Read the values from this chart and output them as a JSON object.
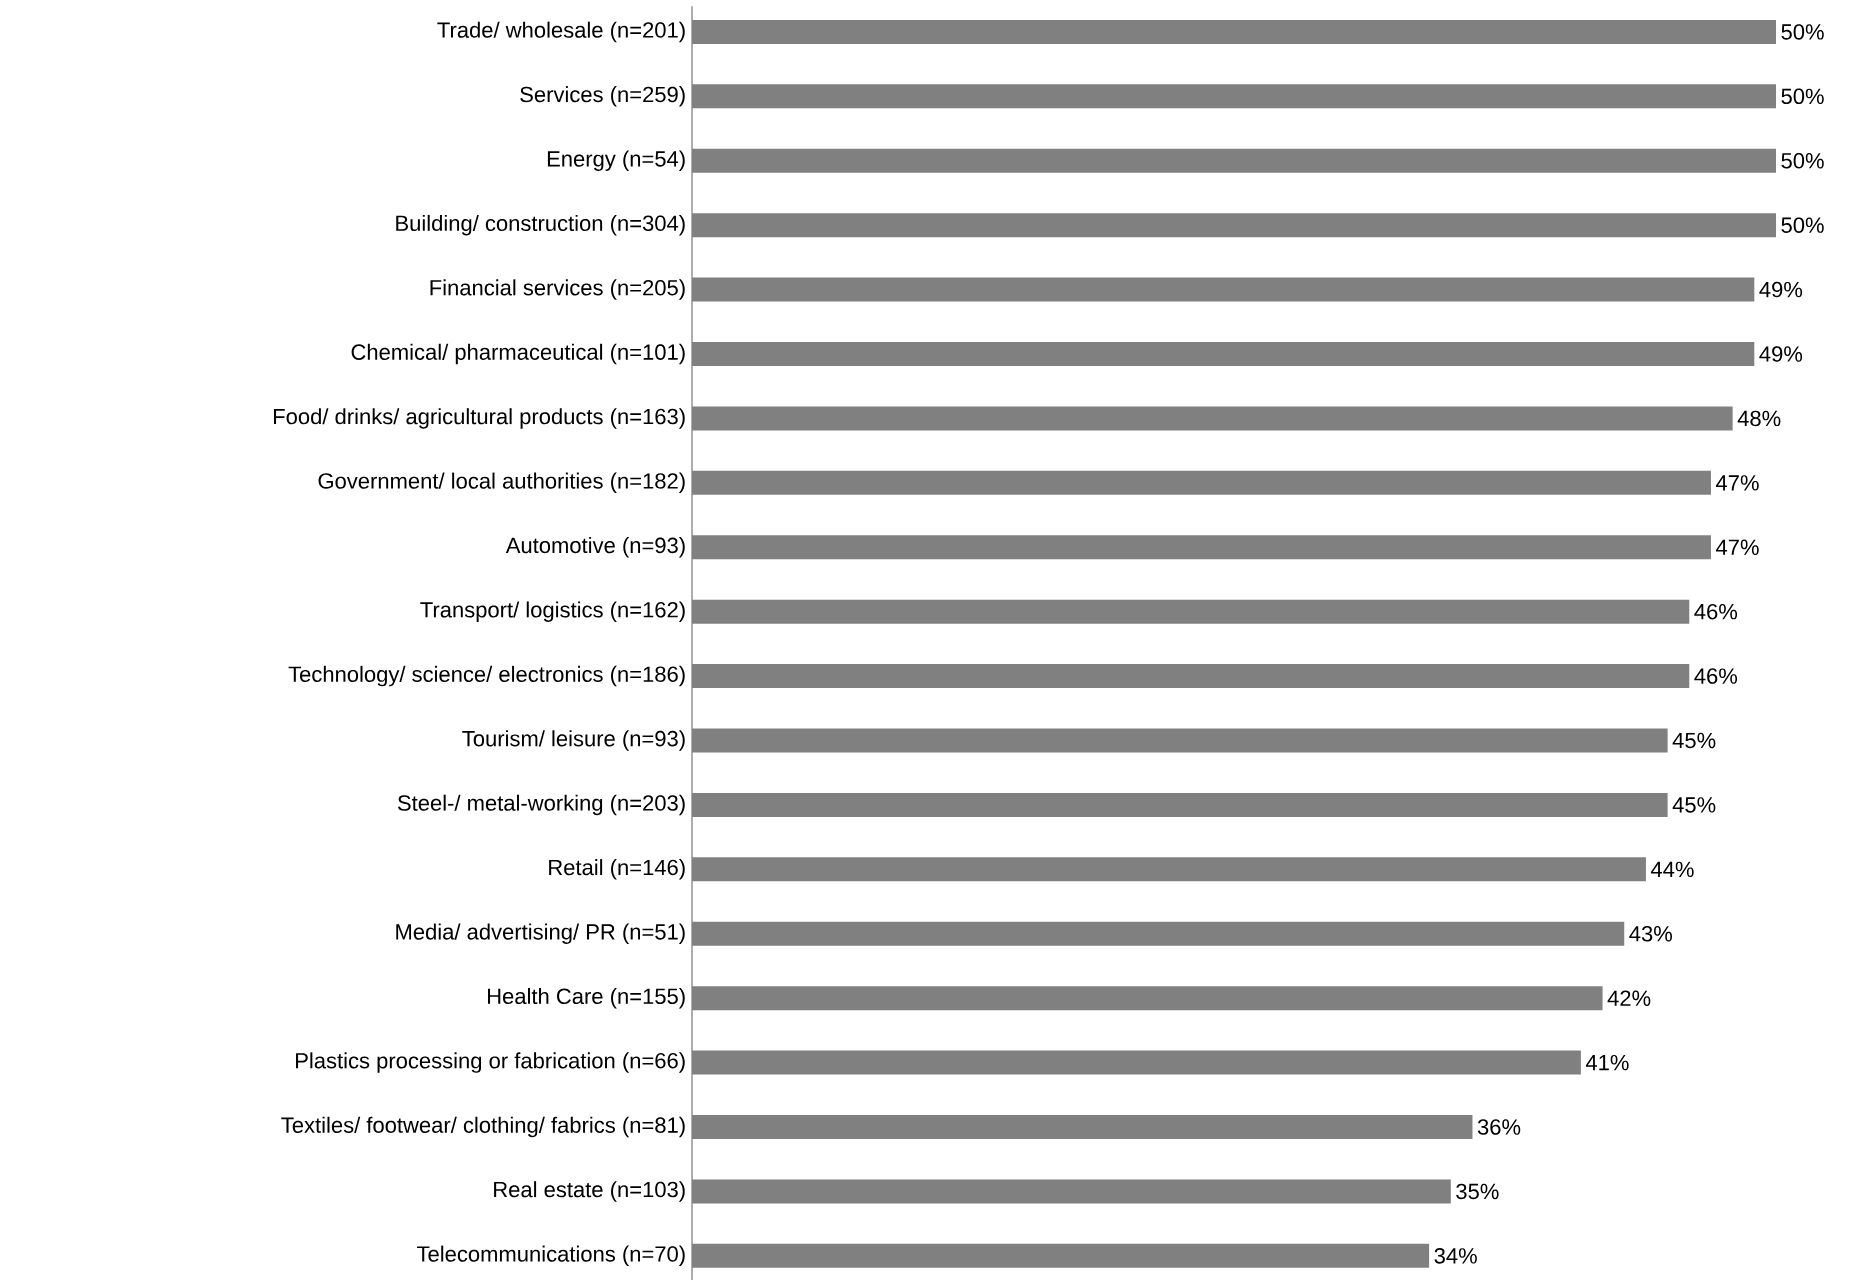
{
  "chart_data": {
    "type": "bar",
    "orientation": "horizontal",
    "color": "#808080",
    "categories": [
      "Trade/ wholesale (n=201)",
      "Services (n=259)",
      "Energy (n=54)",
      "Building/ construction (n=304)",
      "Financial services (n=205)",
      "Chemical/ pharmaceutical (n=101)",
      "Food/ drinks/ agricultural products (n=163)",
      "Government/ local authorities (n=182)",
      "Automotive (n=93)",
      "Transport/ logistics (n=162)",
      "Technology/ science/ electronics (n=186)",
      "Tourism/ leisure (n=93)",
      "Steel-/ metal-working (n=203)",
      "Retail (n=146)",
      "Media/ advertising/ PR (n=51)",
      "Health Care (n=155)",
      "Plastics processing or fabrication (n=66)",
      "Textiles/ footwear/ clothing/ fabrics (n=81)",
      "Real estate (n=103)",
      "Telecommunications (n=70)"
    ],
    "values": [
      50,
      50,
      50,
      50,
      49,
      49,
      48,
      47,
      47,
      46,
      46,
      45,
      45,
      44,
      43,
      42,
      41,
      36,
      35,
      34
    ],
    "value_labels": [
      "50%",
      "50%",
      "50%",
      "50%",
      "49%",
      "49%",
      "48%",
      "47%",
      "47%",
      "46%",
      "46%",
      "45%",
      "45%",
      "44%",
      "43%",
      "42%",
      "41%",
      "36%",
      "35%",
      "34%"
    ]
  }
}
